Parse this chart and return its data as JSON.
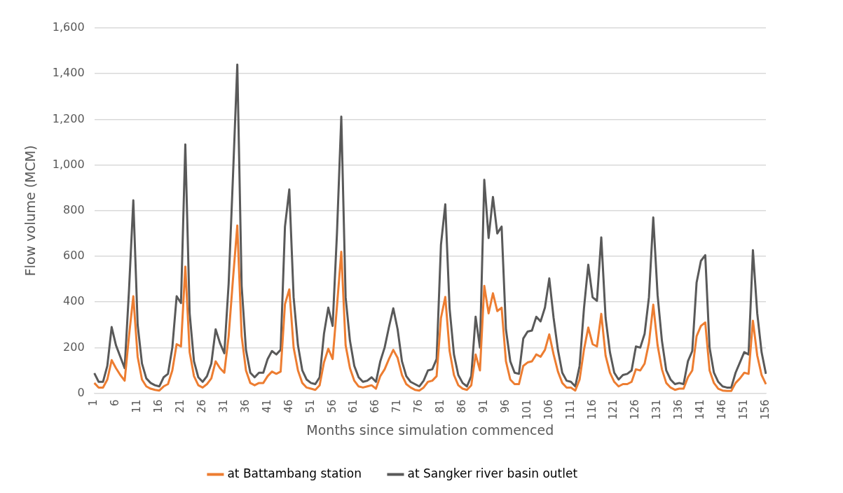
{
  "chart_data": {
    "type": "line",
    "xlabel": "Months since simulation commenced",
    "ylabel": "Flow volume (MCM)",
    "categories": [
      "1",
      null,
      null,
      null,
      null,
      "6",
      null,
      null,
      null,
      null,
      "11",
      null,
      null,
      null,
      null,
      "16",
      null,
      null,
      null,
      null,
      "21",
      null,
      null,
      null,
      null,
      "26",
      null,
      null,
      null,
      null,
      "31",
      null,
      null,
      null,
      null,
      "36",
      null,
      null,
      null,
      null,
      "41",
      null,
      null,
      null,
      null,
      "46",
      null,
      null,
      null,
      null,
      "51",
      null,
      null,
      null,
      null,
      "56",
      null,
      null,
      null,
      null,
      "61",
      null,
      null,
      null,
      null,
      "66",
      null,
      null,
      null,
      null,
      "71",
      null,
      null,
      null,
      null,
      "76",
      null,
      null,
      null,
      null,
      "81",
      null,
      null,
      null,
      null,
      "86",
      null,
      null,
      null,
      null,
      "91",
      null,
      null,
      null,
      null,
      "96",
      null,
      null,
      null,
      null,
      "101",
      null,
      null,
      null,
      null,
      "106",
      null,
      null,
      null,
      null,
      "111",
      null,
      null,
      null,
      null,
      "116",
      null,
      null,
      null,
      null,
      "121",
      null,
      null,
      null,
      null,
      "126",
      null,
      null,
      null,
      null,
      "131",
      null,
      null,
      null,
      null,
      "136",
      null,
      null,
      null,
      null,
      "141",
      null,
      null,
      null,
      null,
      "146",
      null,
      null,
      null,
      null,
      "151",
      null,
      null,
      null,
      null,
      "156"
    ],
    "series": [
      {
        "name": "at Battambang station",
        "color": "#ed7d31",
        "values": [
          45,
          25,
          25,
          60,
          145,
          110,
          80,
          55,
          250,
          425,
          160,
          60,
          30,
          20,
          15,
          12,
          30,
          40,
          100,
          215,
          205,
          555,
          180,
          75,
          35,
          25,
          40,
          65,
          140,
          110,
          90,
          250,
          500,
          735,
          250,
          100,
          45,
          35,
          45,
          45,
          75,
          95,
          85,
          95,
          390,
          455,
          200,
          100,
          45,
          25,
          20,
          15,
          35,
          135,
          195,
          150,
          380,
          620,
          210,
          110,
          55,
          30,
          25,
          30,
          35,
          20,
          75,
          105,
          150,
          190,
          155,
          80,
          40,
          25,
          15,
          12,
          25,
          50,
          55,
          75,
          330,
          422,
          185,
          80,
          35,
          20,
          15,
          35,
          170,
          100,
          470,
          350,
          438,
          360,
          375,
          140,
          60,
          40,
          40,
          120,
          135,
          140,
          170,
          160,
          190,
          258,
          170,
          95,
          45,
          25,
          25,
          12,
          60,
          190,
          288,
          215,
          205,
          348,
          165,
          90,
          50,
          30,
          40,
          40,
          50,
          105,
          100,
          130,
          220,
          388,
          210,
          105,
          45,
          25,
          15,
          20,
          20,
          70,
          100,
          250,
          295,
          310,
          100,
          45,
          20,
          12,
          10,
          10,
          45,
          65,
          90,
          85,
          318,
          165,
          80,
          40
        ]
      },
      {
        "name": "at Sangker river basin outlet",
        "color": "#595959",
        "values": [
          88,
          50,
          50,
          120,
          290,
          210,
          160,
          110,
          450,
          845,
          300,
          130,
          65,
          45,
          35,
          30,
          70,
          85,
          200,
          425,
          395,
          1090,
          350,
          140,
          70,
          50,
          75,
          130,
          280,
          220,
          175,
          480,
          950,
          1440,
          470,
          190,
          90,
          70,
          90,
          90,
          150,
          185,
          170,
          190,
          730,
          893,
          420,
          210,
          100,
          60,
          45,
          40,
          70,
          260,
          375,
          295,
          700,
          1212,
          420,
          230,
          120,
          70,
          50,
          55,
          70,
          50,
          140,
          200,
          290,
          372,
          280,
          140,
          75,
          50,
          40,
          30,
          55,
          100,
          105,
          150,
          650,
          828,
          370,
          170,
          80,
          45,
          30,
          75,
          335,
          200,
          935,
          680,
          860,
          700,
          730,
          280,
          140,
          90,
          85,
          240,
          270,
          275,
          335,
          315,
          375,
          503,
          330,
          190,
          90,
          55,
          50,
          30,
          120,
          370,
          563,
          420,
          405,
          683,
          330,
          180,
          90,
          60,
          80,
          85,
          100,
          205,
          200,
          260,
          420,
          770,
          430,
          230,
          100,
          60,
          40,
          45,
          40,
          140,
          185,
          485,
          580,
          605,
          200,
          90,
          50,
          30,
          25,
          25,
          90,
          135,
          180,
          170,
          627,
          350,
          180,
          85
        ]
      }
    ],
    "ylim": [
      0,
      1600
    ],
    "yticks": [
      0,
      {
        "value": 200,
        "label": "200"
      },
      {
        "value": 400,
        "label": "400"
      },
      {
        "value": 600,
        "label": "600"
      },
      {
        "value": 800,
        "label": "800"
      },
      {
        "value": 1000,
        "label": "1,000"
      },
      {
        "value": 1200,
        "label": "1,200"
      },
      {
        "value": 1400,
        "label": "1,400"
      },
      {
        "value": 1600,
        "label": "1,600"
      }
    ],
    "grid": "y",
    "legend": "bottom",
    "marker": "none",
    "line_style": "solid"
  }
}
